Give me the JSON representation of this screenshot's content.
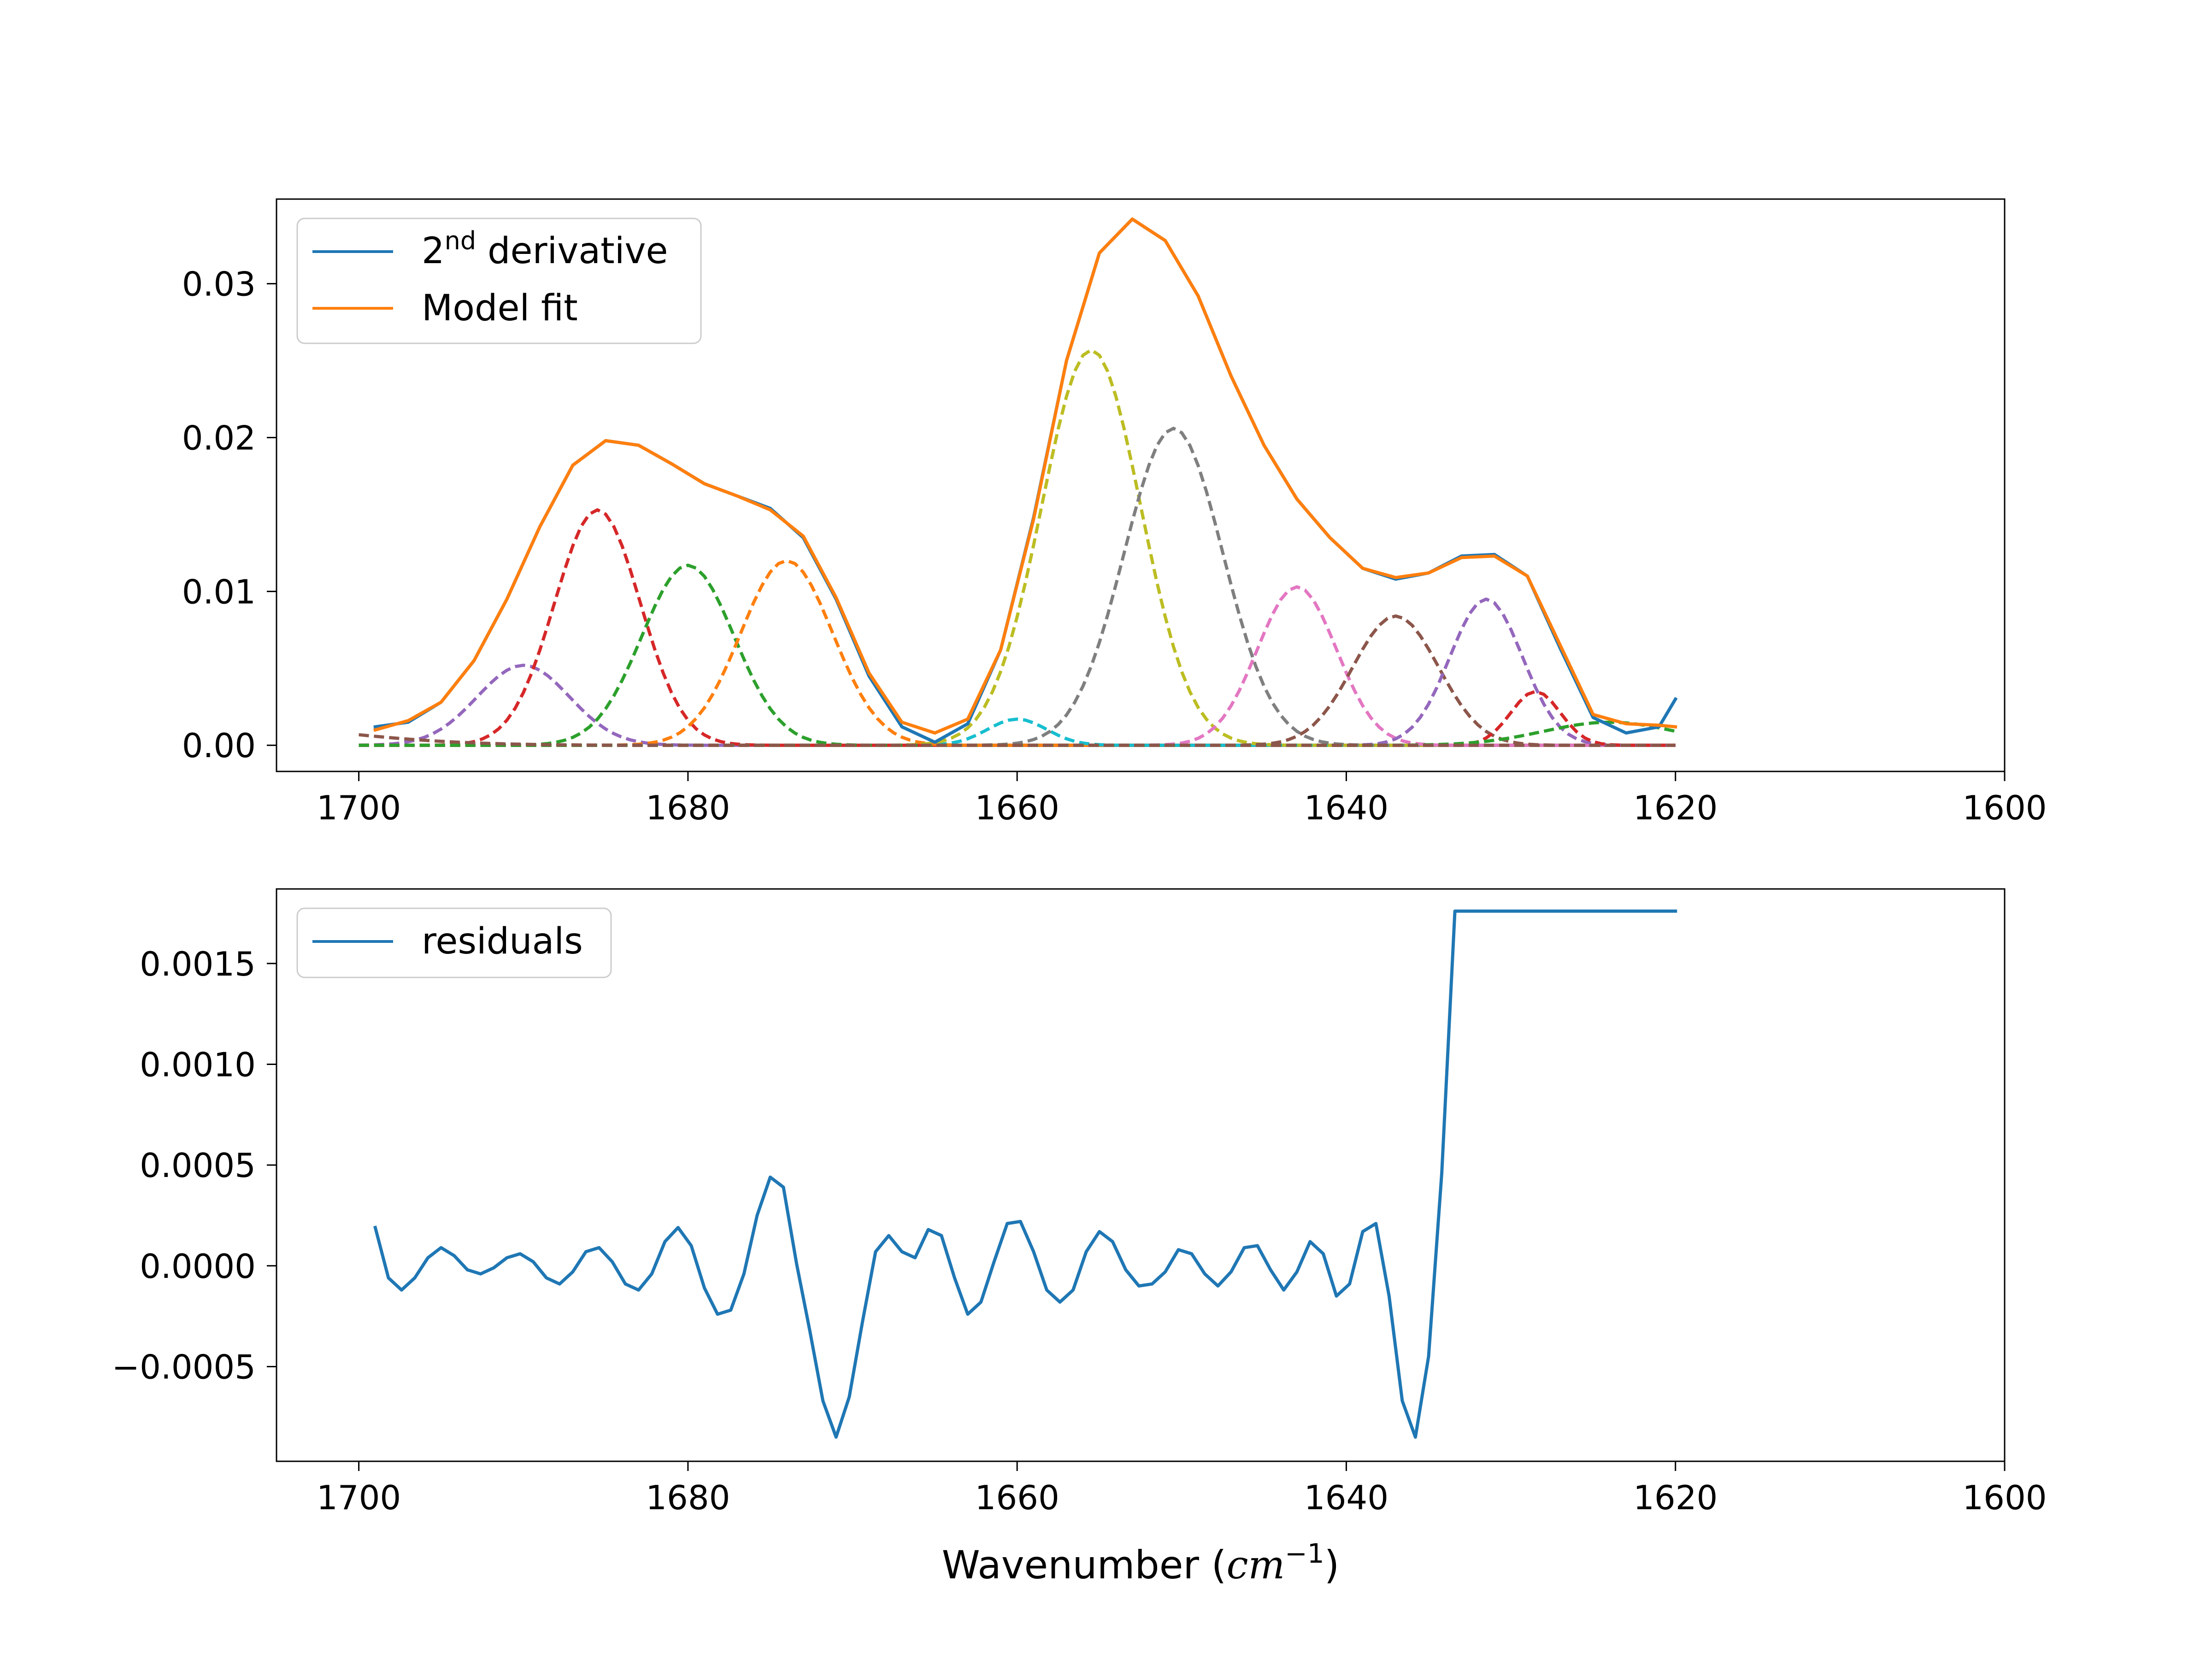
{
  "chart_data": [
    {
      "type": "line",
      "title": "",
      "xlabel": "",
      "ylabel": "",
      "xlim": [
        1705,
        1600
      ],
      "ylim": [
        -0.0017,
        0.0355
      ],
      "xticks": [
        1700,
        1680,
        1660,
        1640,
        1620,
        1600
      ],
      "xtick_labels": [
        "1700",
        "1680",
        "1660",
        "1640",
        "1620",
        "1600"
      ],
      "yticks": [
        0.0,
        0.01,
        0.02,
        0.03
      ],
      "ytick_labels": [
        "0.00",
        "0.01",
        "0.02",
        "0.03"
      ],
      "legend": {
        "location": "upper-left",
        "entries": [
          {
            "label_base": "2",
            "label_sup": "nd",
            "label_rest": " derivative",
            "color": "#1f77b4"
          },
          {
            "label": "Model fit",
            "color": "#ff7f0e"
          }
        ]
      },
      "series": [
        {
          "name": "2nd derivative",
          "style": "solid",
          "color": "#1f77b4",
          "x": [
            1699,
            1697,
            1695,
            1693,
            1691,
            1689,
            1687,
            1685,
            1683,
            1681,
            1679,
            1677,
            1675,
            1673,
            1671,
            1669,
            1667,
            1665,
            1663,
            1661,
            1659,
            1657,
            1655,
            1653,
            1651,
            1649,
            1647,
            1645,
            1643,
            1641,
            1639,
            1637,
            1635,
            1633,
            1631,
            1629,
            1627,
            1625,
            1623,
            1621,
            1620
          ],
          "y": [
            0.0012,
            0.0015,
            0.0028,
            0.0055,
            0.0095,
            0.0142,
            0.0182,
            0.0198,
            0.0195,
            0.0183,
            0.017,
            0.0162,
            0.0154,
            0.0135,
            0.0095,
            0.0045,
            0.0012,
            0.0002,
            0.0014,
            0.0062,
            0.0148,
            0.025,
            0.032,
            0.0342,
            0.0328,
            0.0292,
            0.024,
            0.0195,
            0.016,
            0.0135,
            0.0115,
            0.0108,
            0.0112,
            0.0123,
            0.0124,
            0.011,
            0.0063,
            0.0018,
            0.0008,
            0.0012,
            0.003
          ]
        },
        {
          "name": "Model fit",
          "style": "solid",
          "color": "#ff7f0e",
          "x": [
            1699,
            1697,
            1695,
            1693,
            1691,
            1689,
            1687,
            1685,
            1683,
            1681,
            1679,
            1677,
            1675,
            1673,
            1671,
            1669,
            1667,
            1665,
            1663,
            1661,
            1659,
            1657,
            1655,
            1653,
            1651,
            1649,
            1647,
            1645,
            1643,
            1641,
            1639,
            1637,
            1635,
            1633,
            1631,
            1629,
            1627,
            1625,
            1623,
            1621,
            1620
          ],
          "y": [
            0.001,
            0.0016,
            0.0028,
            0.0055,
            0.0095,
            0.0142,
            0.0182,
            0.0198,
            0.0195,
            0.0183,
            0.017,
            0.0162,
            0.0153,
            0.0136,
            0.0096,
            0.0047,
            0.0015,
            0.0008,
            0.0017,
            0.0062,
            0.0147,
            0.025,
            0.032,
            0.0342,
            0.0328,
            0.0292,
            0.024,
            0.0195,
            0.016,
            0.0135,
            0.0115,
            0.0109,
            0.0112,
            0.0122,
            0.0123,
            0.011,
            0.0065,
            0.002,
            0.0014,
            0.0013,
            0.0012
          ]
        }
      ],
      "components": [
        {
          "color": "#9467bd",
          "center": 1690.0,
          "amplitude": 0.0052,
          "sigma": 2.8
        },
        {
          "color": "#d62728",
          "center": 1685.5,
          "amplitude": 0.0153,
          "sigma": 2.6
        },
        {
          "color": "#2ca02c",
          "center": 1680.0,
          "amplitude": 0.0117,
          "sigma": 2.8
        },
        {
          "color": "#ff7f0e",
          "center": 1674.0,
          "amplitude": 0.012,
          "sigma": 2.8
        },
        {
          "color": "#17becf",
          "center": 1660.0,
          "amplitude": 0.0017,
          "sigma": 1.8
        },
        {
          "color": "#bcbd22",
          "center": 1655.5,
          "amplitude": 0.0257,
          "sigma": 3.0
        },
        {
          "color": "#7f7f7f",
          "center": 1650.5,
          "amplitude": 0.0206,
          "sigma": 3.0
        },
        {
          "color": "#e377c2",
          "center": 1643.0,
          "amplitude": 0.0103,
          "sigma": 2.4
        },
        {
          "color": "#8c564b",
          "center": 1637.0,
          "amplitude": 0.0084,
          "sigma": 2.6
        },
        {
          "color": "#9467bd",
          "center": 1631.5,
          "amplitude": 0.0095,
          "sigma": 2.2
        },
        {
          "color": "#d62728",
          "center": 1628.5,
          "amplitude": 0.0035,
          "sigma": 1.5
        },
        {
          "color": "#2ca02c",
          "center": 1624.0,
          "amplitude": 0.0015,
          "sigma": 4.0
        },
        {
          "color": "#8c564b",
          "center": 1710.0,
          "amplitude": 0.0015,
          "sigma": 8.0
        }
      ],
      "components_x_range": [
        1700,
        1620
      ]
    },
    {
      "type": "line",
      "title": "",
      "xlabel_base": "Wavenumber (",
      "xlabel_math": "cm",
      "xlabel_sup": "−1",
      "xlabel_close": ")",
      "ylabel": "",
      "xlim": [
        1705,
        1600
      ],
      "ylim": [
        -0.00097,
        0.00187
      ],
      "xticks": [
        1700,
        1680,
        1660,
        1640,
        1620,
        1600
      ],
      "xtick_labels": [
        "1700",
        "1680",
        "1660",
        "1640",
        "1620",
        "1600"
      ],
      "yticks": [
        -0.0005,
        0.0,
        0.0005,
        0.001,
        0.0015
      ],
      "ytick_labels": [
        "−0.0005",
        "0.0000",
        "0.0005",
        "0.0010",
        "0.0015"
      ],
      "legend": {
        "location": "upper-left",
        "entries": [
          {
            "label": "residuals",
            "color": "#1f77b4"
          }
        ]
      },
      "series": [
        {
          "name": "residuals",
          "style": "solid",
          "color": "#1f77b4",
          "x": [
            1699,
            1698.2,
            1697.4,
            1696.6,
            1695.8,
            1695,
            1694.2,
            1693.4,
            1692.6,
            1691.8,
            1691,
            1690.2,
            1689.4,
            1688.6,
            1687.8,
            1687,
            1686.2,
            1685.4,
            1684.6,
            1683.8,
            1683,
            1682.2,
            1681.4,
            1680.6,
            1679.8,
            1679,
            1678.2,
            1677.4,
            1676.6,
            1675.8,
            1675,
            1674.2,
            1673.4,
            1672.6,
            1671.8,
            1671,
            1670.2,
            1669.4,
            1668.6,
            1667.8,
            1667,
            1666.2,
            1665.4,
            1664.6,
            1663.8,
            1663,
            1662.2,
            1661.4,
            1660.6,
            1659.8,
            1659,
            1658.2,
            1657.4,
            1656.6,
            1655.8,
            1655,
            1654.2,
            1653.4,
            1652.6,
            1651.8,
            1651,
            1650.2,
            1649.4,
            1648.6,
            1647.8,
            1647,
            1646.2,
            1645.4,
            1644.6,
            1643.8,
            1643,
            1642.2,
            1641.4,
            1640.6,
            1639.8,
            1639,
            1638.2,
            1637.4,
            1636.6,
            1635.8,
            1635,
            1634.2,
            1633.4,
            1632.6,
            1631.8,
            1631,
            1630.2,
            1629.4,
            1628.6,
            1627.8,
            1627,
            1626.2,
            1625.4,
            1624.6,
            1623.8,
            1623,
            1622.2,
            1621.4,
            1620.6,
            1620
          ],
          "y": [
            0.00019,
            -6e-05,
            -0.00012,
            -6e-05,
            4e-05,
            9e-05,
            5e-05,
            -2e-05,
            -4e-05,
            -1e-05,
            4e-05,
            6e-05,
            2e-05,
            -6e-05,
            -9e-05,
            -3e-05,
            7e-05,
            9e-05,
            2e-05,
            -9e-05,
            -0.00012,
            -4e-05,
            0.00012,
            0.00019,
            0.0001,
            -0.00011,
            -0.00024,
            -0.00022,
            -4e-05,
            0.00025,
            0.00044,
            0.00039,
            1e-05,
            -0.00032,
            -0.00067,
            -0.00085,
            -0.00065,
            -0.00028,
            7e-05,
            0.00015,
            7e-05,
            4e-05,
            0.00018,
            0.00015,
            -6e-05,
            -0.00024,
            -0.00018,
            2e-05,
            0.00021,
            0.00022,
            7e-05,
            -0.00012,
            -0.00018,
            -0.00012,
            7e-05,
            0.00017,
            0.00012,
            -2e-05,
            -0.0001,
            -9e-05,
            -3e-05,
            8e-05,
            6e-05,
            -4e-05,
            -0.0001,
            -3e-05,
            9e-05,
            0.0001,
            -2e-05,
            -0.00012,
            -3e-05,
            0.00012,
            6e-05,
            -0.00015,
            -9e-05,
            0.00017,
            0.00021,
            -0.00015,
            -0.00067,
            -0.00085,
            -0.00045,
            0.00046,
            0.00176,
            0.00176,
            0.00176,
            0.00176,
            0.00176,
            0.00176,
            0.00176,
            0.00176,
            0.00176,
            0.00176,
            0.00176,
            0.00176,
            0.00176,
            0.00176,
            0.00176,
            0.00176,
            0.00176,
            0.00176
          ]
        }
      ]
    }
  ]
}
